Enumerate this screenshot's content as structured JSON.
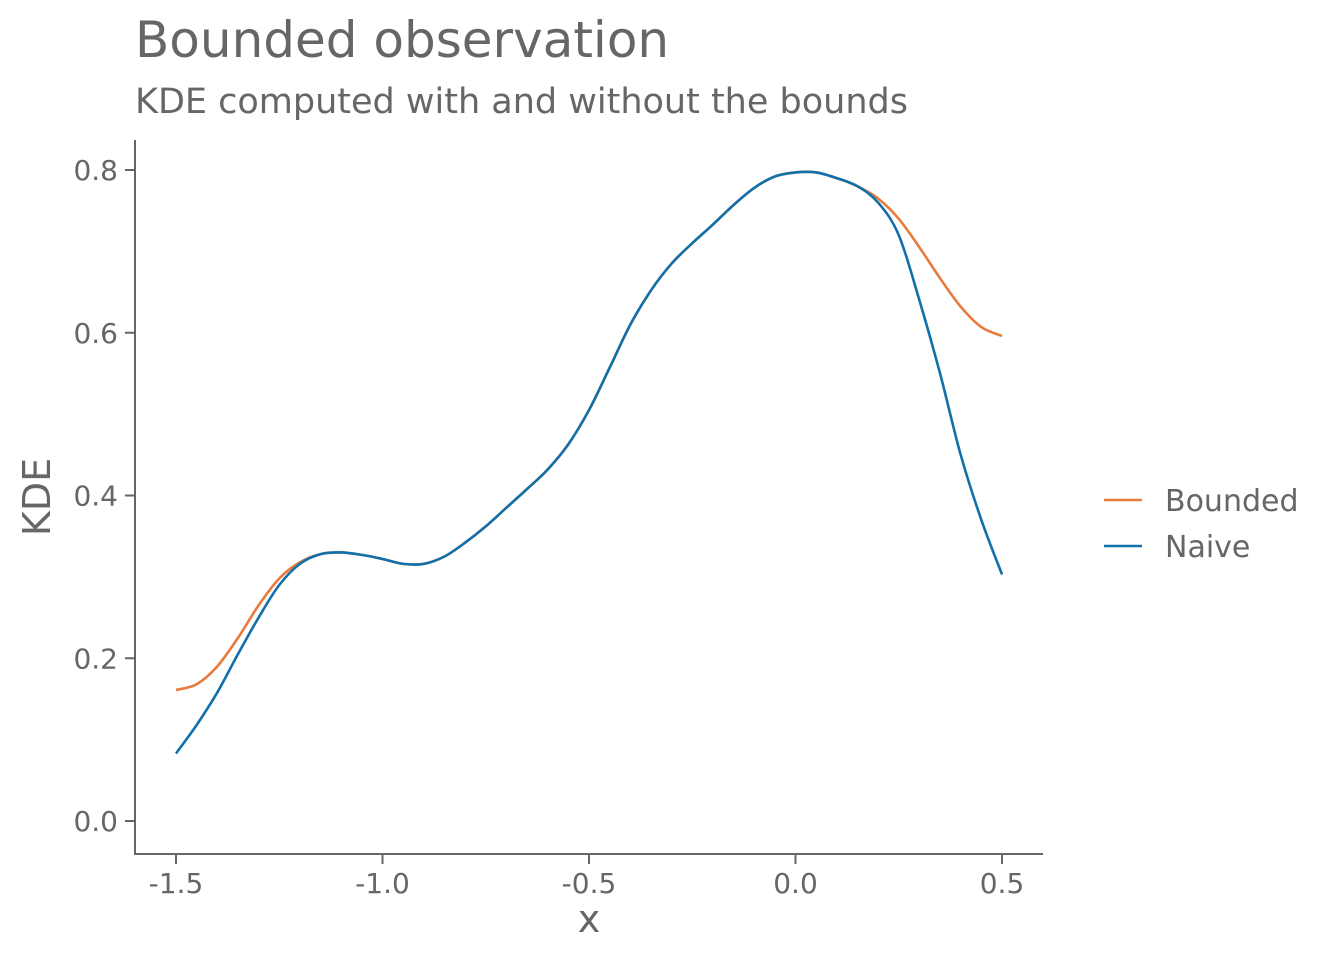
{
  "chart_data": {
    "type": "line",
    "title": "Bounded observation",
    "subtitle": "KDE computed with and without the bounds",
    "xlabel": "x",
    "ylabel": "KDE",
    "xlim": [
      -1.6,
      0.6
    ],
    "ylim": [
      -0.04,
      0.84
    ],
    "x_ticks": [
      -1.5,
      -1.0,
      -0.5,
      0.0,
      0.5
    ],
    "x_tick_labels": [
      "-1.5",
      "-1.0",
      "-0.5",
      "0.0",
      "0.5"
    ],
    "y_ticks": [
      0.0,
      0.2,
      0.4,
      0.6,
      0.8
    ],
    "y_tick_labels": [
      "0.0",
      "0.2",
      "0.4",
      "0.6",
      "0.8"
    ],
    "grid": false,
    "legend_position": "right",
    "series": [
      {
        "name": "Bounded",
        "color": "#E87A3C",
        "points": [
          [
            -1.5,
            0.161
          ],
          [
            -1.45,
            0.168
          ],
          [
            -1.4,
            0.19
          ],
          [
            -1.35,
            0.225
          ],
          [
            -1.3,
            0.265
          ],
          [
            -1.25,
            0.298
          ],
          [
            -1.2,
            0.318
          ],
          [
            -1.15,
            0.328
          ],
          [
            -1.1,
            0.33
          ],
          [
            -1.05,
            0.327
          ],
          [
            -1.0,
            0.322
          ],
          [
            -0.95,
            0.316
          ],
          [
            -0.9,
            0.316
          ],
          [
            -0.85,
            0.325
          ],
          [
            -0.8,
            0.342
          ],
          [
            -0.75,
            0.362
          ],
          [
            -0.7,
            0.385
          ],
          [
            -0.65,
            0.408
          ],
          [
            -0.6,
            0.432
          ],
          [
            -0.55,
            0.463
          ],
          [
            -0.5,
            0.505
          ],
          [
            -0.45,
            0.557
          ],
          [
            -0.4,
            0.61
          ],
          [
            -0.35,
            0.652
          ],
          [
            -0.3,
            0.685
          ],
          [
            -0.25,
            0.71
          ],
          [
            -0.2,
            0.733
          ],
          [
            -0.15,
            0.757
          ],
          [
            -0.1,
            0.778
          ],
          [
            -0.05,
            0.792
          ],
          [
            0.0,
            0.797
          ],
          [
            0.05,
            0.797
          ],
          [
            0.1,
            0.79
          ],
          [
            0.15,
            0.78
          ],
          [
            0.2,
            0.765
          ],
          [
            0.25,
            0.74
          ],
          [
            0.3,
            0.705
          ],
          [
            0.35,
            0.667
          ],
          [
            0.4,
            0.632
          ],
          [
            0.45,
            0.607
          ],
          [
            0.5,
            0.596
          ]
        ]
      },
      {
        "name": "Naive",
        "color": "#1170AA",
        "points": [
          [
            -1.5,
            0.083
          ],
          [
            -1.45,
            0.118
          ],
          [
            -1.4,
            0.158
          ],
          [
            -1.35,
            0.205
          ],
          [
            -1.3,
            0.25
          ],
          [
            -1.25,
            0.29
          ],
          [
            -1.2,
            0.316
          ],
          [
            -1.15,
            0.328
          ],
          [
            -1.1,
            0.33
          ],
          [
            -1.05,
            0.327
          ],
          [
            -1.0,
            0.322
          ],
          [
            -0.95,
            0.316
          ],
          [
            -0.9,
            0.316
          ],
          [
            -0.85,
            0.325
          ],
          [
            -0.8,
            0.342
          ],
          [
            -0.75,
            0.362
          ],
          [
            -0.7,
            0.385
          ],
          [
            -0.65,
            0.408
          ],
          [
            -0.6,
            0.432
          ],
          [
            -0.55,
            0.463
          ],
          [
            -0.5,
            0.505
          ],
          [
            -0.45,
            0.557
          ],
          [
            -0.4,
            0.61
          ],
          [
            -0.35,
            0.652
          ],
          [
            -0.3,
            0.685
          ],
          [
            -0.25,
            0.71
          ],
          [
            -0.2,
            0.733
          ],
          [
            -0.15,
            0.757
          ],
          [
            -0.1,
            0.778
          ],
          [
            -0.05,
            0.792
          ],
          [
            0.0,
            0.797
          ],
          [
            0.05,
            0.797
          ],
          [
            0.1,
            0.79
          ],
          [
            0.15,
            0.78
          ],
          [
            0.2,
            0.76
          ],
          [
            0.25,
            0.72
          ],
          [
            0.3,
            0.64
          ],
          [
            0.35,
            0.55
          ],
          [
            0.4,
            0.45
          ],
          [
            0.45,
            0.37
          ],
          [
            0.5,
            0.303
          ]
        ]
      }
    ]
  }
}
